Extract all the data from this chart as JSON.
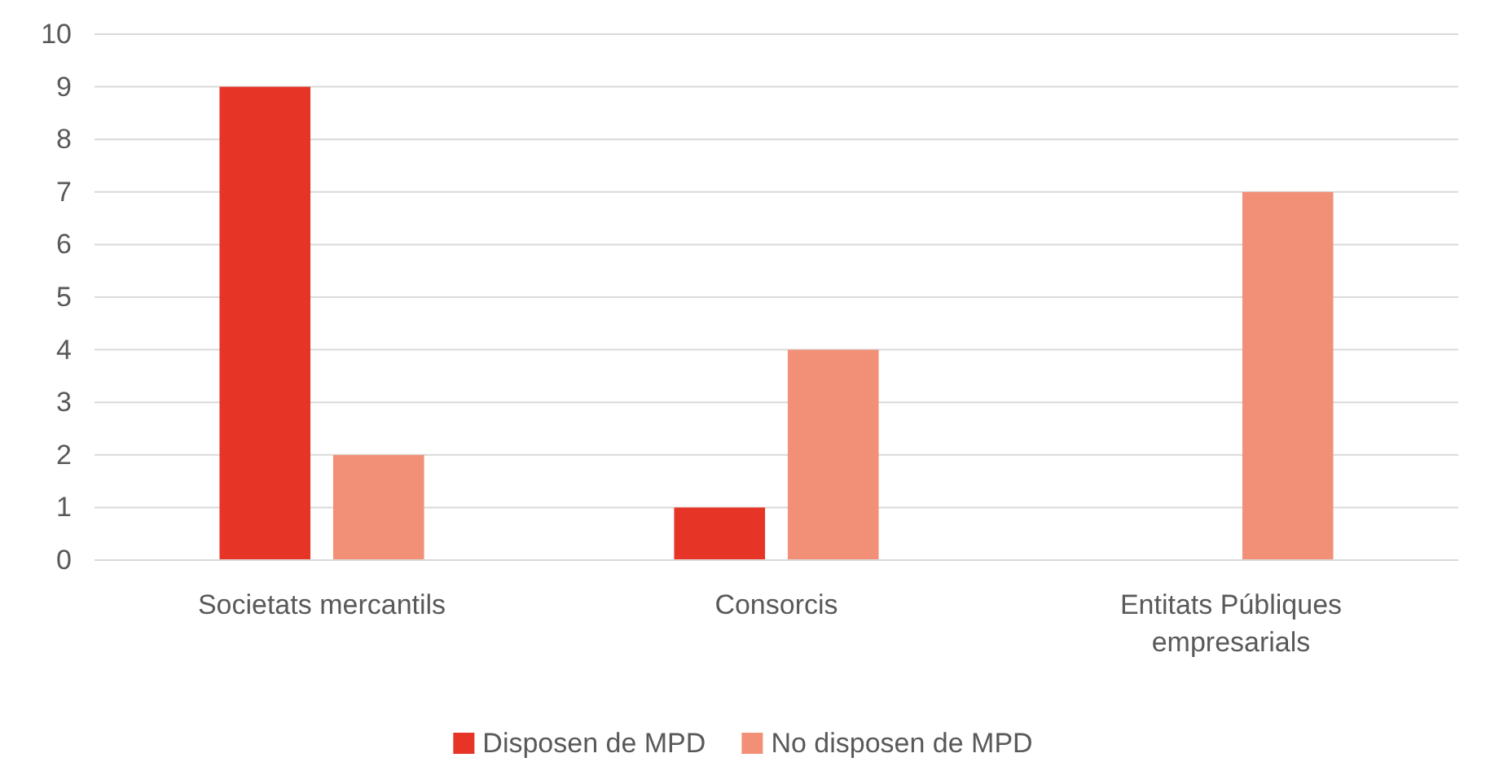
{
  "chart_data": {
    "type": "bar",
    "categories": [
      "Societats mercantils",
      "Consorcis",
      "Entitats Públiques empresarials"
    ],
    "series": [
      {
        "name": "Disposen de MPD",
        "color": "#e63427",
        "values": [
          9,
          1,
          0
        ]
      },
      {
        "name": "No disposen de MPD",
        "color": "#f29077",
        "values": [
          2,
          4,
          7
        ]
      }
    ],
    "ylim": [
      0,
      10
    ],
    "yticks": [
      0,
      1,
      2,
      3,
      4,
      5,
      6,
      7,
      8,
      9,
      10
    ],
    "grid": "y",
    "legend": "bottom"
  }
}
